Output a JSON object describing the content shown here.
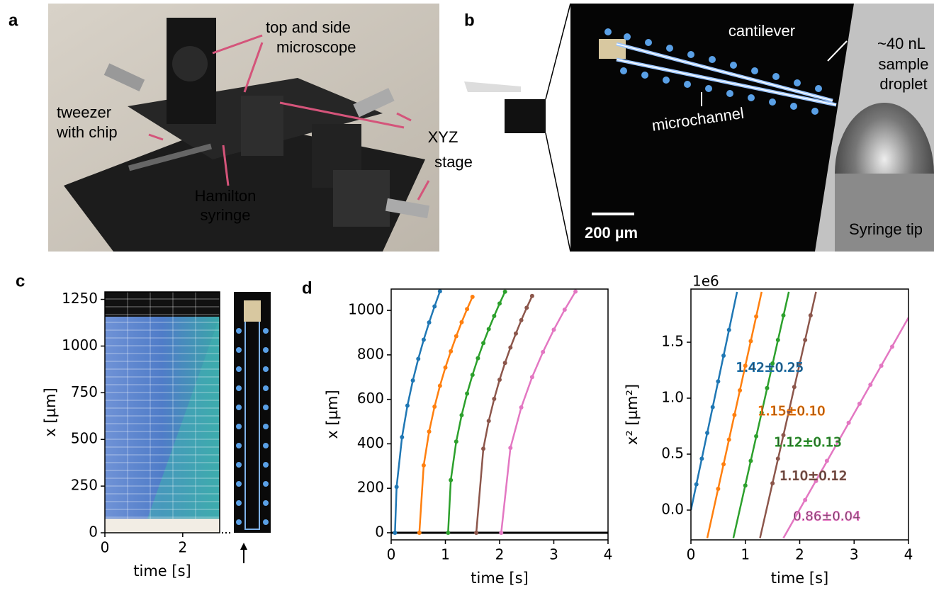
{
  "panel_labels": [
    "a",
    "b",
    "c",
    "d"
  ],
  "photo_labels": {
    "a": [
      {
        "lines": [
          "top and side",
          "microscope"
        ]
      },
      {
        "lines": [
          "tweezer",
          "with chip"
        ]
      },
      {
        "lines": [
          "XYZ",
          "stage"
        ]
      },
      {
        "lines": [
          "Hamilton",
          "syringe"
        ]
      }
    ],
    "b": [
      {
        "lines": [
          "cantilever"
        ]
      },
      {
        "lines": [
          "~40 nL",
          "sample",
          "droplet"
        ]
      },
      {
        "lines": [
          "microchannel"
        ]
      },
      {
        "lines": [
          "200 µm"
        ]
      },
      {
        "lines": [
          "Syringe tip"
        ]
      }
    ]
  },
  "chart_data": [
    {
      "type": "image",
      "xlabel": "time [s]",
      "ylabel": "x [µm]",
      "xlim": [
        0,
        2.95
      ],
      "xticks": [
        0,
        2
      ],
      "ylim": [
        0,
        1290
      ],
      "yticks": [
        0,
        250,
        500,
        750,
        1000,
        1250
      ]
    },
    {
      "type": "line",
      "xlabel": "time [s]",
      "ylabel": "x [µm]",
      "xlim": [
        0,
        4
      ],
      "xticks": [
        0,
        1,
        2,
        3,
        4
      ],
      "ylim": [
        -32,
        1096
      ],
      "yticks": [
        0,
        200,
        400,
        600,
        800,
        1000
      ],
      "hline": 0,
      "series": [
        {
          "color": "#1f77b4",
          "x": [
            0.07,
            0.1,
            0.2,
            0.3,
            0.4,
            0.5,
            0.6,
            0.7,
            0.8,
            0.9
          ],
          "values": [
            0,
            206,
            430,
            572,
            685,
            782,
            868,
            946,
            1018,
            1086
          ]
        },
        {
          "color": "#ff7f0e",
          "x": [
            0.52,
            0.6,
            0.7,
            0.8,
            0.9,
            1.0,
            1.1,
            1.2,
            1.3,
            1.4,
            1.5
          ],
          "values": [
            0,
            303,
            455,
            567,
            661,
            743,
            816,
            884,
            947,
            1006,
            1061
          ]
        },
        {
          "color": "#2ca02c",
          "x": [
            1.05,
            1.1,
            1.2,
            1.3,
            1.4,
            1.5,
            1.6,
            1.7,
            1.8,
            1.9,
            2.0,
            2.1
          ],
          "values": [
            0,
            237,
            410,
            529,
            626,
            710,
            785,
            853,
            916,
            975,
            1031,
            1084
          ]
        },
        {
          "color": "#8c564b",
          "x": [
            1.57,
            1.7,
            1.8,
            1.9,
            2.0,
            2.1,
            2.2,
            2.3,
            2.4,
            2.5,
            2.6
          ],
          "values": [
            0,
            378,
            503,
            602,
            688,
            764,
            833,
            896,
            956,
            1012,
            1065
          ]
        },
        {
          "color": "#e377c2",
          "x": [
            2.03,
            2.2,
            2.4,
            2.6,
            2.8,
            3.0,
            3.2,
            3.4
          ],
          "values": [
            0,
            382,
            564,
            700,
            813,
            913,
            1003,
            1085
          ]
        }
      ]
    },
    {
      "type": "line",
      "offset_label": "1e6",
      "xlabel": "time [s]",
      "ylabel": "x² [µm²]",
      "xlim": [
        0,
        4
      ],
      "xticks": [
        0,
        1,
        2,
        3,
        4
      ],
      "ylim": [
        -0.266,
        1.975
      ],
      "yticks": [
        {
          "value": 0,
          "label": "0.0"
        },
        {
          "value": 0.5,
          "label": "0.5"
        },
        {
          "value": 1,
          "label": "1.0"
        },
        {
          "value": 1.5,
          "label": "1.5"
        }
      ],
      "series": [
        {
          "color": "#1f77b4",
          "x": [
            0.1,
            0.2,
            0.3,
            0.4,
            0.5,
            0.6,
            0.7
          ],
          "values": [
            0.23,
            0.46,
            0.69,
            0.92,
            1.15,
            1.38,
            1.61
          ],
          "fit_x": [
            0,
            0.848
          ],
          "fit_values": [
            0,
            1.95
          ]
        },
        {
          "color": "#ff7f0e",
          "x": [
            0.5,
            0.6,
            0.7,
            0.8,
            0.9,
            1.0,
            1.1,
            1.2
          ],
          "values": [
            0.19,
            0.41,
            0.63,
            0.85,
            1.07,
            1.29,
            1.51,
            1.73
          ],
          "fit_x": [
            0.3,
            1.3
          ],
          "fit_values": [
            -0.25,
            1.95
          ]
        },
        {
          "color": "#2ca02c",
          "x": [
            1.0,
            1.1,
            1.2,
            1.3,
            1.4,
            1.5,
            1.6,
            1.7
          ],
          "values": [
            0.22,
            0.44,
            0.66,
            0.87,
            1.09,
            1.31,
            1.52,
            1.74
          ],
          "fit_x": [
            0.78,
            1.8
          ],
          "fit_values": [
            -0.25,
            1.95
          ]
        },
        {
          "color": "#8c564b",
          "x": [
            1.5,
            1.6,
            1.7,
            1.8,
            1.9,
            2.0,
            2.1,
            2.2
          ],
          "values": [
            0.24,
            0.46,
            0.67,
            0.88,
            1.1,
            1.31,
            1.52,
            1.74
          ],
          "fit_x": [
            1.27,
            2.3
          ],
          "fit_values": [
            -0.25,
            1.95
          ]
        },
        {
          "color": "#e377c2",
          "x": [
            2.1,
            2.3,
            2.5,
            2.7,
            2.9,
            3.1,
            3.3,
            3.5,
            3.7
          ],
          "values": [
            0.09,
            0.26,
            0.44,
            0.61,
            0.78,
            0.95,
            1.12,
            1.29,
            1.46
          ],
          "fit_x": [
            1.7,
            4
          ],
          "fit_values": [
            -0.25,
            1.72
          ]
        }
      ],
      "annotations": [
        {
          "text": "1.42±0.25",
          "x": 1.45,
          "y": 1.27,
          "color": "#1f77b4"
        },
        {
          "text": "1.15±0.10",
          "x": 1.85,
          "y": 0.88,
          "color": "#ff7f0e"
        },
        {
          "text": "1.12±0.13",
          "x": 2.15,
          "y": 0.6,
          "color": "#2ca02c"
        },
        {
          "text": "1.10±0.12",
          "x": 2.25,
          "y": 0.3,
          "color": "#8c564b"
        },
        {
          "text": "0.86±0.04",
          "x": 2.5,
          "y": -0.06,
          "color": "#e377c2"
        }
      ]
    }
  ]
}
